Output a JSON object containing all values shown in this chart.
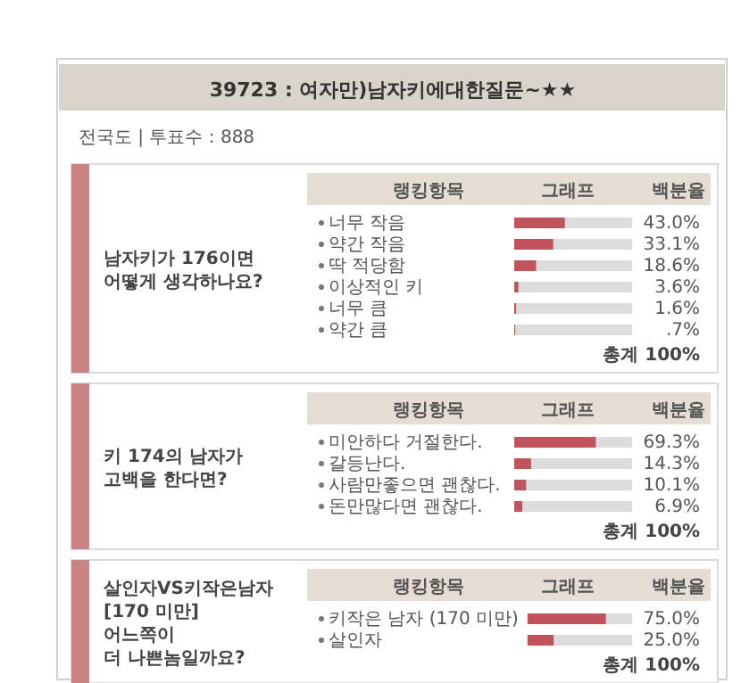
{
  "chart_data": [
    {
      "type": "other",
      "title": "39723 : 여자만)남자키에대한질문~★★",
      "annotations": [
        "전국도 | 투표수 : 888"
      ]
    },
    {
      "type": "bar",
      "orientation": "horizontal",
      "title": "남자키가 176이면\n어떻게 생각하나요?",
      "annotations": [
        "랭킹항목",
        "그래프",
        "백분율",
        "총계 100%"
      ],
      "categories": [
        "너무 작음",
        "약간 작음",
        "딱 적당함",
        "이상적인 키",
        "너무 큼",
        "약간 큼"
      ],
      "values": [
        43.0,
        33.1,
        18.6,
        3.6,
        1.6,
        0.7
      ],
      "value_labels": [
        "43.0%",
        "33.1%",
        "18.6%",
        "3.6%",
        "1.6%",
        ".7%"
      ],
      "color": "#c0535c",
      "xlim": [
        0,
        100
      ]
    },
    {
      "type": "bar",
      "orientation": "horizontal",
      "title": "키 174의 남자가\n고백을 한다면?",
      "annotations": [
        "랭킹항목",
        "그래프",
        "백분율",
        "총계 100%"
      ],
      "categories": [
        "미안하다 거절한다.",
        "갈등난다.",
        "사람만좋으면 괜찮다.",
        "돈만많다면 괜찮다."
      ],
      "values": [
        69.3,
        14.3,
        10.1,
        6.9
      ],
      "value_labels": [
        "69.3%",
        "14.3%",
        "10.1%",
        "6.9%"
      ],
      "color": "#c0535c",
      "xlim": [
        0,
        100
      ]
    },
    {
      "type": "bar",
      "orientation": "horizontal",
      "title": "살인자VS키작은남자\n[170 미만]\n어느쪽이\n더 나쁜놈일까요?",
      "annotations": [
        "랭킹항목",
        "그래프",
        "백분율",
        "총계 100%"
      ],
      "categories": [
        "키작은 남자 (170 미만)",
        "살인자"
      ],
      "values": [
        75.0,
        25.0
      ],
      "value_labels": [
        "75.0%",
        "25.0%"
      ],
      "color": "#c0535c",
      "xlim": [
        0,
        100
      ]
    }
  ]
}
